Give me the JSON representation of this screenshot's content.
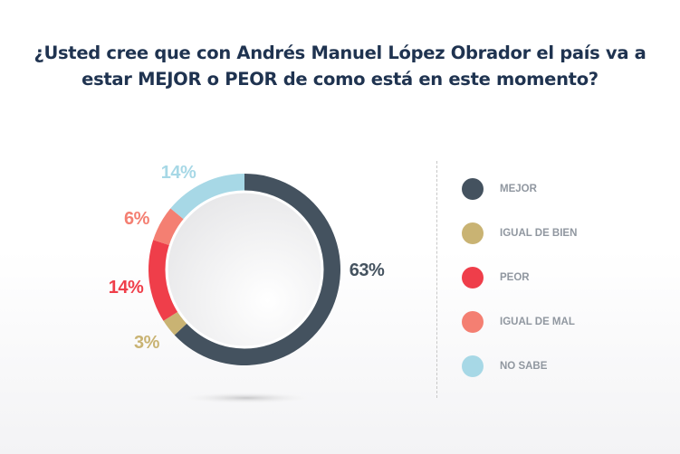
{
  "title": {
    "line1": "¿Usted cree que con Andrés Manuel López Obrador el país va a",
    "line2": "estar MEJOR o PEOR de como está en este momento?"
  },
  "chart_data": {
    "type": "pie",
    "variant": "donut",
    "title": "¿Usted cree que con Andrés Manuel López Obrador el país va a estar MEJOR o PEOR de como está en este momento?",
    "unit": "%",
    "legend_position": "right",
    "slices": [
      {
        "label": "MEJOR",
        "value": 63,
        "display": "63%",
        "color": "#44525f"
      },
      {
        "label": "IGUAL DE BIEN",
        "value": 3,
        "display": "3%",
        "color": "#c9b373"
      },
      {
        "label": "PEOR",
        "value": 14,
        "display": "14%",
        "color": "#ef3e4a"
      },
      {
        "label": "IGUAL DE MAL",
        "value": 6,
        "display": "6%",
        "color": "#f47f72"
      },
      {
        "label": "NO SABE",
        "value": 14,
        "display": "14%",
        "color": "#a7d8e6"
      }
    ]
  }
}
